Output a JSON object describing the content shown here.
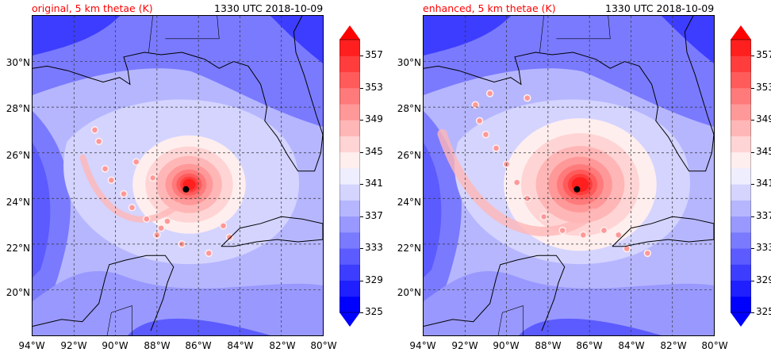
{
  "panels": [
    {
      "id": "original",
      "label": "original, 5 km thetae (K)",
      "time": "1330 UTC 2018-10-09"
    },
    {
      "id": "enhanced",
      "label": "enhanced, 5 km thetae (K)",
      "time": "1330 UTC 2018-10-09"
    }
  ],
  "title_color": "#ff0000",
  "lat_labels": [
    "30°N",
    "28°N",
    "26°N",
    "24°N",
    "22°N",
    "20°N"
  ],
  "lon_labels": [
    "94°W",
    "92°W",
    "90°W",
    "88°W",
    "86°W",
    "84°W",
    "82°W",
    "80°W"
  ],
  "colorbar": {
    "ticks": [
      "357",
      "353",
      "349",
      "345",
      "341",
      "337",
      "333",
      "329",
      "325"
    ],
    "levels": [
      325,
      327,
      329,
      331,
      333,
      335,
      337,
      339,
      341,
      343,
      345,
      347,
      349,
      351,
      353,
      355,
      357,
      359
    ],
    "colors": [
      "#0000ff",
      "#1f1fff",
      "#3d3dff",
      "#5b5bff",
      "#7a7aff",
      "#9898ff",
      "#b6b6ff",
      "#d4d4ff",
      "#eeeeff",
      "#ffeeee",
      "#ffd4d4",
      "#ffb6b6",
      "#ff9898",
      "#ff7a7a",
      "#ff5b5b",
      "#ff3d3d",
      "#ff1f1f"
    ],
    "min_color": "#0000ff",
    "max_color": "#ff0000"
  },
  "map": {
    "lon_range": [
      -94,
      -80
    ],
    "lat_range": [
      18,
      32
    ],
    "storm_center": {
      "lon": -86.6,
      "lat": 24.4
    },
    "ocean_color": "#c9ccff",
    "land_color": "#5b5bff"
  }
}
